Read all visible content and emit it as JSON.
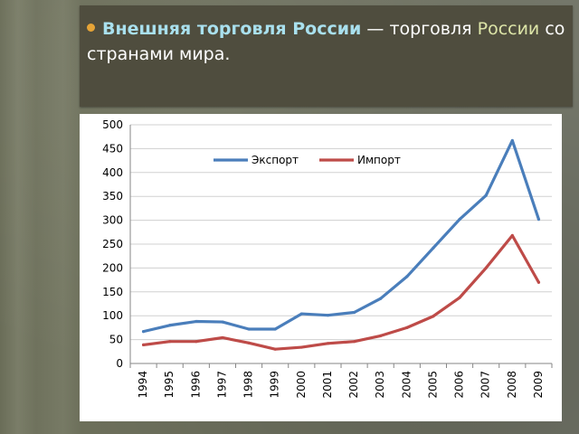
{
  "slide": {
    "bold_term": "Внешняя торговля России",
    "dash": " — торговля ",
    "link_word": "России",
    "rest": " со странами мира."
  },
  "chart_data": {
    "type": "line",
    "title": "",
    "xlabel": "",
    "ylabel": "",
    "ylim": [
      0,
      500
    ],
    "ytick_step": 50,
    "grid": "horizontal",
    "legend_position": "top-center",
    "x": [
      "1994",
      "1995",
      "1996",
      "1997",
      "1998",
      "1999",
      "2000",
      "2001",
      "2002",
      "2003",
      "2004",
      "2005",
      "2006",
      "2007",
      "2008",
      "2009"
    ],
    "series": [
      {
        "name": "Экспорт",
        "color": "#4a7ebb",
        "values": [
          67,
          80,
          88,
          87,
          72,
          72,
          104,
          101,
          107,
          136,
          182,
          242,
          302,
          352,
          467,
          302
        ]
      },
      {
        "name": "Импорт",
        "color": "#be4b48",
        "values": [
          39,
          46,
          46,
          54,
          43,
          30,
          34,
          42,
          46,
          58,
          75,
          99,
          138,
          200,
          268,
          170
        ]
      }
    ]
  }
}
